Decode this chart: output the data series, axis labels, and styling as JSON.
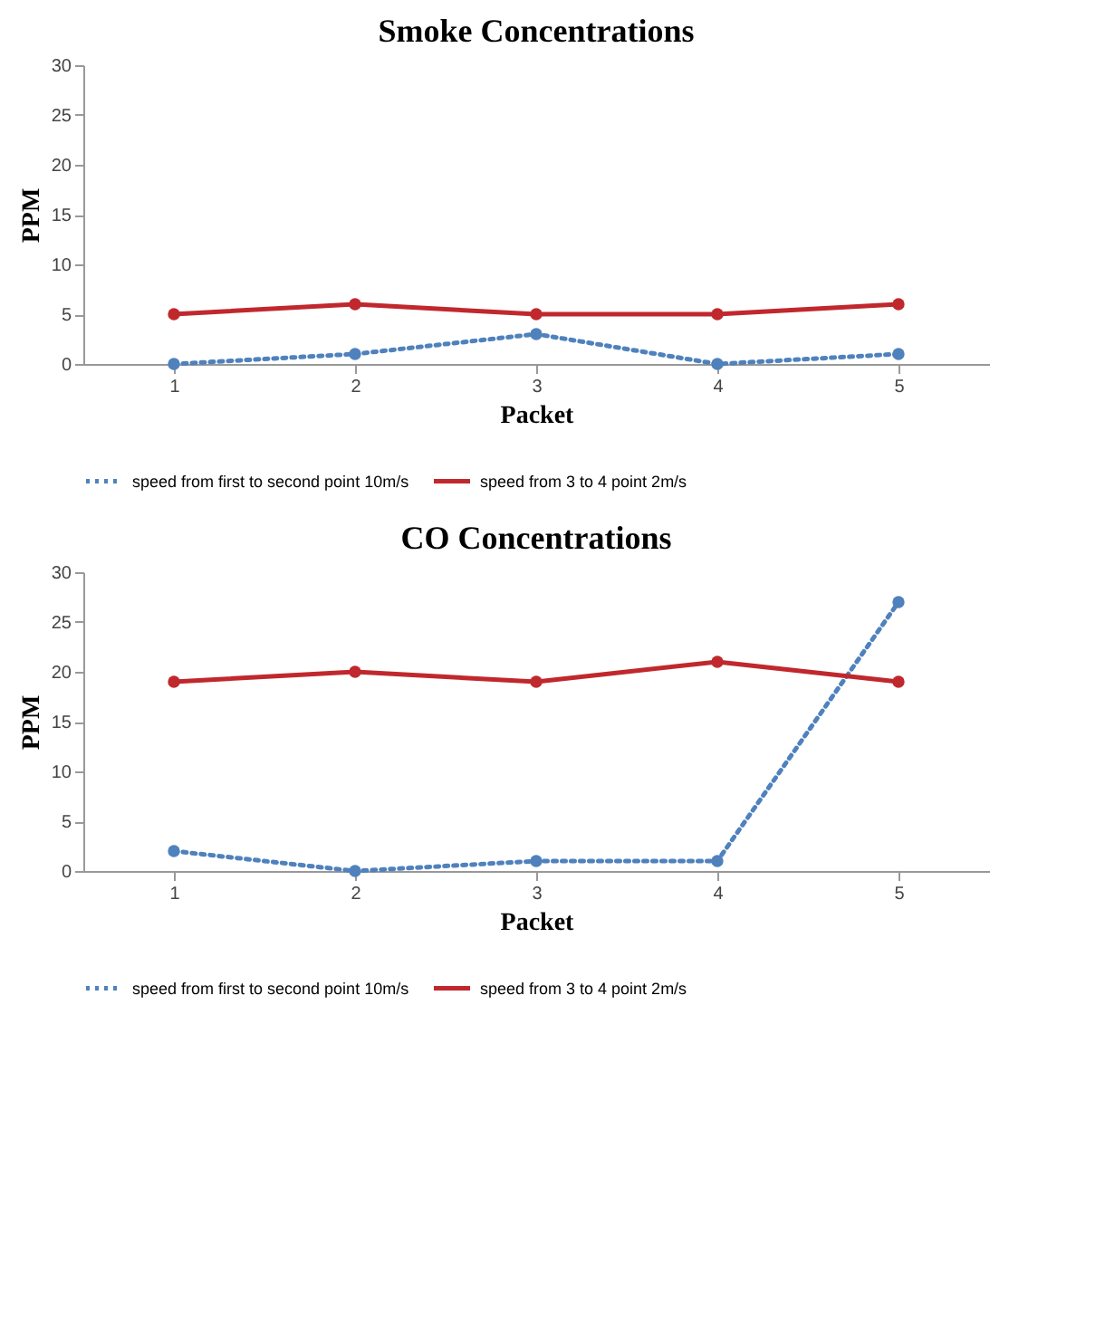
{
  "chart_data": [
    {
      "type": "line",
      "title": "Smoke Concentrations",
      "xlabel": "Packet",
      "ylabel": "PPM",
      "categories": [
        "1",
        "2",
        "3",
        "4",
        "5"
      ],
      "ylim": [
        0,
        30
      ],
      "yticks": [
        0,
        5,
        10,
        15,
        20,
        25,
        30
      ],
      "legend": "bottom",
      "marker": "circle",
      "series": [
        {
          "name": "speed from first to second point 10m/s",
          "color": "#4f81bd",
          "line_style": "dotted",
          "values": [
            0,
            1,
            3,
            0,
            1
          ]
        },
        {
          "name": "speed from 3 to 4 point 2m/s",
          "color": "#c0282d",
          "line_style": "solid",
          "values": [
            5,
            6,
            5,
            5,
            6
          ]
        }
      ]
    },
    {
      "type": "line",
      "title": "CO Concentrations",
      "xlabel": "Packet",
      "ylabel": "PPM",
      "categories": [
        "1",
        "2",
        "3",
        "4",
        "5"
      ],
      "ylim": [
        0,
        30
      ],
      "yticks": [
        0,
        5,
        10,
        15,
        20,
        25,
        30
      ],
      "legend": "bottom",
      "marker": "circle",
      "series": [
        {
          "name": "speed from first to second point 10m/s",
          "color": "#4f81bd",
          "line_style": "dotted",
          "values": [
            2,
            0,
            1,
            1,
            27
          ]
        },
        {
          "name": "speed from 3 to 4 point 2m/s",
          "color": "#c0282d",
          "line_style": "solid",
          "values": [
            19,
            20,
            19,
            21,
            19
          ]
        }
      ]
    }
  ]
}
